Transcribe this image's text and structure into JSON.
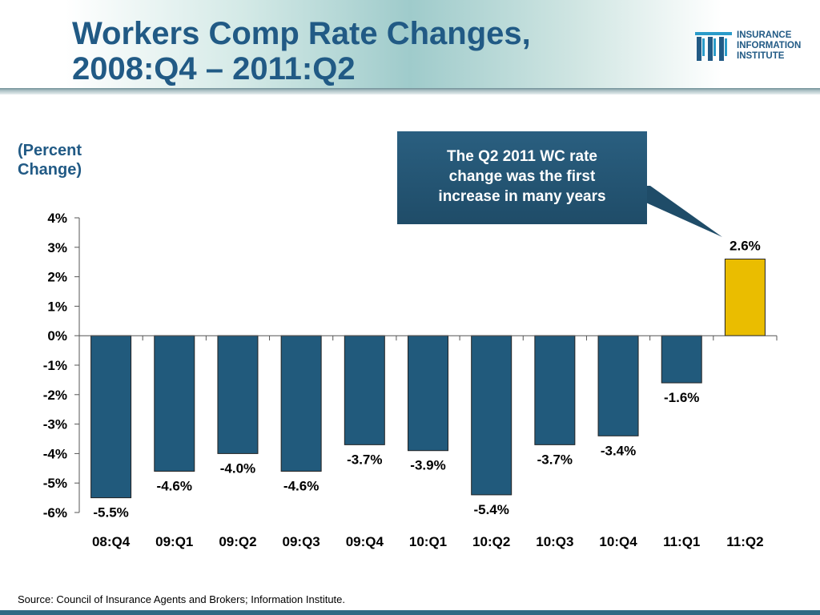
{
  "header": {
    "title_line1": "Workers Comp Rate Changes,",
    "title_line2": "2008:Q4 – 2011:Q2",
    "logo_lines": [
      "INSURANCE",
      "INFORMATION",
      "INSTITUTE"
    ]
  },
  "y_unit_label": [
    "(Percent",
    "Change)"
  ],
  "callout": {
    "lines": [
      "The Q2 2011 WC rate",
      "change was the first",
      "increase in many years"
    ]
  },
  "source": "Source: Council of Insurance Agents and Brokers; Information Institute.",
  "colors": {
    "title": "#215a85",
    "negative_bar": "#215a7c",
    "positive_bar": "#eabd00",
    "callout": "#1f4c68",
    "footer": "#2f6a83"
  },
  "icons": [
    "iii-logo-icon"
  ],
  "chart_data": {
    "type": "bar",
    "categories": [
      "08:Q4",
      "09:Q1",
      "09:Q2",
      "09:Q3",
      "09:Q4",
      "10:Q1",
      "10:Q2",
      "10:Q3",
      "10:Q4",
      "11:Q1",
      "11:Q2"
    ],
    "values": [
      -5.5,
      -4.6,
      -4.0,
      -4.6,
      -3.7,
      -3.9,
      -5.4,
      -3.7,
      -3.4,
      -1.6,
      2.6
    ],
    "value_labels": [
      "-5.5%",
      "-4.6%",
      "-4.0%",
      "-4.6%",
      "-3.7%",
      "-3.9%",
      "-5.4%",
      "-3.7%",
      "-3.4%",
      "-1.6%",
      "2.6%"
    ],
    "yticks": [
      4,
      3,
      2,
      1,
      0,
      -1,
      -2,
      -3,
      -4,
      -5,
      -6
    ],
    "ytick_labels": [
      "4%",
      "3%",
      "2%",
      "1%",
      "0%",
      "-1%",
      "-2%",
      "-3%",
      "-4%",
      "-5%",
      "-6%"
    ],
    "ylim": [
      -6,
      4
    ],
    "title": "",
    "xlabel": "",
    "ylabel": "(Percent Change)",
    "grid": false,
    "legend": "none"
  }
}
